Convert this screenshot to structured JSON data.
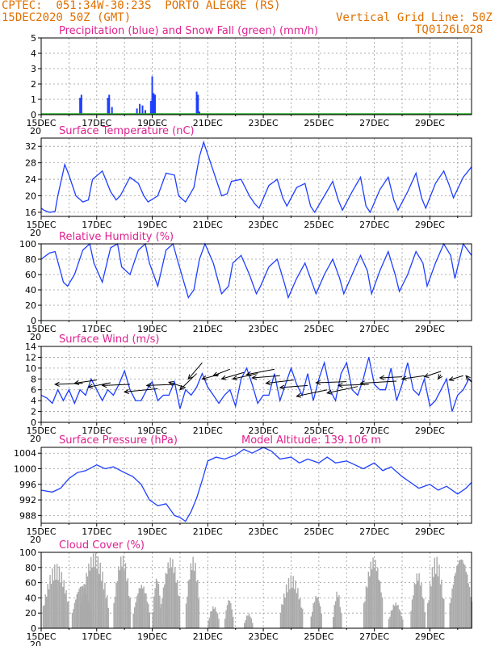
{
  "header": {
    "line1": "CPTEC:  051:34W-30:23S  PORTO ALEGRE (RS)",
    "line2_left": "15DEC2020 50Z (GMT)",
    "line2_right": "Vertical Grid Line: 50Z",
    "line3_right": "TQ0126L028"
  },
  "x_ticks": [
    "15DEC",
    "17DEC",
    "19DEC",
    "21DEC",
    "23DEC",
    "25DEC",
    "27DEC",
    "29DEC"
  ],
  "x_subtick": "20",
  "colors": {
    "series": "#1f3fff",
    "title": "#e0208f",
    "header": "#e07000",
    "cloud": "#aaaaaa",
    "snow": "#22aa22"
  },
  "chart_data": [
    {
      "type": "bar",
      "title": "Precipitation (blue) and Snow Fall (green) (mm/h)",
      "ylim": [
        0,
        5
      ],
      "yticks": [
        0,
        1,
        2,
        3,
        4,
        5
      ],
      "xlim": [
        0,
        15.5
      ],
      "series": [
        {
          "name": "Precipitation",
          "x": [
            1.4,
            1.45,
            2.4,
            2.45,
            2.55,
            3.45,
            3.55,
            3.65,
            3.75,
            3.95,
            4.0,
            4.05,
            4.1,
            5.6,
            5.65,
            5.7
          ],
          "values": [
            1.1,
            1.3,
            1.1,
            1.3,
            0.5,
            0.4,
            0.7,
            0.6,
            0.3,
            0.9,
            2.5,
            1.4,
            1.3,
            1.5,
            1.3,
            0.2
          ]
        }
      ]
    },
    {
      "type": "line",
      "title": "Surface Temperature (nC)",
      "ylim": [
        15,
        34
      ],
      "yticks": [
        16,
        20,
        24,
        28,
        32
      ],
      "xlim": [
        0,
        15.5
      ],
      "x": [
        0,
        0.1,
        0.3,
        0.5,
        0.6,
        0.85,
        1.0,
        1.25,
        1.5,
        1.7,
        1.85,
        2.2,
        2.5,
        2.7,
        2.85,
        3.2,
        3.5,
        3.7,
        3.85,
        4.2,
        4.5,
        4.8,
        4.95,
        5.2,
        5.5,
        5.7,
        5.85,
        6.2,
        6.5,
        6.7,
        6.85,
        7.2,
        7.5,
        7.7,
        7.85,
        8.2,
        8.5,
        8.7,
        8.85,
        9.2,
        9.5,
        9.7,
        9.85,
        10.2,
        10.5,
        10.7,
        10.85,
        11.2,
        11.5,
        11.7,
        11.85,
        12.2,
        12.5,
        12.7,
        12.85,
        13.2,
        13.5,
        13.7,
        13.85,
        14.2,
        14.5,
        14.7,
        14.85,
        15.2,
        15.5
      ],
      "values": [
        17,
        16.5,
        16,
        16.2,
        20,
        27.6,
        25,
        20,
        18.5,
        19,
        24,
        26,
        21,
        19,
        20,
        24.5,
        23,
        20,
        18.5,
        20,
        25.5,
        25,
        20,
        18.5,
        22,
        29.5,
        33,
        26,
        20,
        20.5,
        23.5,
        24,
        20,
        18,
        17,
        22.5,
        24,
        19.5,
        17.5,
        22,
        23,
        17.5,
        16,
        20,
        23.5,
        19,
        16.5,
        21,
        24.5,
        17.5,
        16,
        21.5,
        24.5,
        19,
        16.5,
        21,
        25.5,
        19.5,
        17,
        23,
        26,
        22.5,
        19.5,
        24.5,
        27
      ]
    },
    {
      "type": "line",
      "title": "Relative Humidity (%)",
      "ylim": [
        0,
        100
      ],
      "yticks": [
        0,
        20,
        40,
        60,
        80,
        100
      ],
      "xlim": [
        0,
        15.5
      ],
      "x": [
        0,
        0.3,
        0.5,
        0.65,
        0.8,
        0.95,
        1.2,
        1.5,
        1.75,
        1.9,
        2.2,
        2.5,
        2.75,
        2.9,
        3.2,
        3.5,
        3.75,
        3.9,
        4.2,
        4.5,
        4.75,
        4.9,
        5.3,
        5.5,
        5.7,
        5.9,
        6.2,
        6.5,
        6.75,
        6.9,
        7.2,
        7.5,
        7.75,
        7.9,
        8.2,
        8.5,
        8.75,
        8.9,
        9.2,
        9.5,
        9.75,
        9.9,
        10.2,
        10.5,
        10.75,
        10.9,
        11.2,
        11.5,
        11.75,
        11.9,
        12.2,
        12.5,
        12.75,
        12.9,
        13.2,
        13.5,
        13.75,
        13.9,
        14.2,
        14.5,
        14.75,
        14.9,
        15.2,
        15.5
      ],
      "values": [
        80,
        88,
        90,
        70,
        50,
        45,
        60,
        92,
        100,
        75,
        50,
        95,
        100,
        70,
        60,
        92,
        100,
        75,
        45,
        92,
        100,
        80,
        30,
        40,
        80,
        100,
        75,
        35,
        45,
        75,
        85,
        60,
        35,
        45,
        70,
        80,
        50,
        30,
        55,
        75,
        50,
        35,
        60,
        80,
        55,
        35,
        60,
        85,
        65,
        35,
        65,
        90,
        60,
        38,
        60,
        90,
        75,
        45,
        75,
        100,
        85,
        55,
        100,
        85
      ]
    },
    {
      "type": "line",
      "title": "Surface Wind (m/s)",
      "ylim": [
        0,
        14
      ],
      "yticks": [
        0,
        2,
        4,
        6,
        8,
        10,
        12,
        14
      ],
      "xlim": [
        0,
        15.5
      ],
      "x": [
        0,
        0.2,
        0.4,
        0.6,
        0.8,
        1.0,
        1.2,
        1.4,
        1.6,
        1.8,
        2.0,
        2.2,
        2.4,
        2.6,
        2.8,
        3.0,
        3.2,
        3.4,
        3.6,
        3.8,
        4.0,
        4.2,
        4.4,
        4.6,
        4.8,
        5.0,
        5.2,
        5.4,
        5.6,
        5.8,
        6.0,
        6.2,
        6.4,
        6.6,
        6.8,
        7.0,
        7.2,
        7.4,
        7.6,
        7.8,
        8.0,
        8.2,
        8.4,
        8.6,
        8.8,
        9.0,
        9.2,
        9.4,
        9.6,
        9.8,
        10.0,
        10.2,
        10.4,
        10.6,
        10.8,
        11.0,
        11.2,
        11.4,
        11.6,
        11.8,
        12.0,
        12.2,
        12.4,
        12.6,
        12.8,
        13.0,
        13.2,
        13.4,
        13.6,
        13.8,
        14.0,
        14.2,
        14.4,
        14.6,
        14.8,
        15.0,
        15.2,
        15.4,
        15.5
      ],
      "values": [
        5,
        4.5,
        3.5,
        6,
        4,
        6,
        3.5,
        6,
        5,
        8,
        6,
        4,
        6,
        5,
        7,
        9.5,
        6,
        4,
        4,
        6,
        7.5,
        4,
        5,
        5,
        7.5,
        2.5,
        6,
        5,
        6.5,
        9,
        6.5,
        5,
        3.5,
        5,
        6,
        3,
        8,
        10,
        7,
        3.5,
        5,
        5,
        9,
        4,
        7,
        10,
        7,
        5,
        9,
        4,
        8,
        11,
        6,
        4,
        9,
        11,
        6,
        5,
        8,
        12,
        7,
        6,
        6,
        10,
        4,
        7,
        11,
        6,
        5,
        8,
        3,
        4,
        6,
        8,
        2,
        5,
        6,
        8,
        7.5
      ]
    },
    {
      "type": "line",
      "title": "Surface Pressure (hPa)",
      "annotation": "Model Altitude: 139.106  m",
      "ylim": [
        986,
        1005.5
      ],
      "yticks": [
        988,
        992,
        996,
        1000,
        1004
      ],
      "xlim": [
        0,
        15.5
      ],
      "x": [
        0,
        0.4,
        0.7,
        1.0,
        1.3,
        1.6,
        2.0,
        2.3,
        2.6,
        3.0,
        3.3,
        3.6,
        3.9,
        4.2,
        4.5,
        4.8,
        5.0,
        5.2,
        5.4,
        5.6,
        5.8,
        6.0,
        6.3,
        6.6,
        7.0,
        7.3,
        7.6,
        8.0,
        8.3,
        8.6,
        9.0,
        9.3,
        9.6,
        10.0,
        10.3,
        10.6,
        11.0,
        11.3,
        11.6,
        12.0,
        12.3,
        12.6,
        13.0,
        13.3,
        13.6,
        14.0,
        14.3,
        14.6,
        15.0,
        15.3,
        15.5
      ],
      "values": [
        994.5,
        994,
        995,
        997.5,
        999,
        999.5,
        1001,
        1000,
        1000.5,
        999,
        998,
        996,
        992,
        990.5,
        991,
        988,
        987.5,
        986.5,
        989,
        992.5,
        997,
        1002,
        1003,
        1002.5,
        1003.5,
        1005,
        1004,
        1005.5,
        1004.5,
        1002.5,
        1003,
        1001.5,
        1002.5,
        1001.5,
        1003,
        1001.5,
        1002,
        1001,
        1000,
        1001.5,
        999.5,
        1000.5,
        998,
        996.5,
        995,
        996,
        994.5,
        995.5,
        993.5,
        995,
        996.5
      ]
    },
    {
      "type": "bar",
      "title": "Cloud Cover (%)",
      "ylim": [
        0,
        100
      ],
      "yticks": [
        0,
        20,
        40,
        60,
        80,
        100
      ],
      "xlim": [
        0,
        15.5
      ],
      "segments": [
        {
          "start": 0.05,
          "end": 1.0,
          "peak": 85
        },
        {
          "start": 1.1,
          "end": 1.8,
          "peak": 60
        },
        {
          "start": 1.4,
          "end": 2.4,
          "peak": 100
        },
        {
          "start": 2.6,
          "end": 3.2,
          "peak": 98
        },
        {
          "start": 3.3,
          "end": 3.9,
          "peak": 60
        },
        {
          "start": 4.0,
          "end": 4.3,
          "peak": 70
        },
        {
          "start": 4.3,
          "end": 5.0,
          "peak": 95
        },
        {
          "start": 5.2,
          "end": 5.7,
          "peak": 95
        },
        {
          "start": 6.0,
          "end": 6.4,
          "peak": 30
        },
        {
          "start": 6.6,
          "end": 6.9,
          "peak": 40
        },
        {
          "start": 7.3,
          "end": 7.6,
          "peak": 20
        },
        {
          "start": 8.6,
          "end": 9.4,
          "peak": 70
        },
        {
          "start": 9.7,
          "end": 10.1,
          "peak": 45
        },
        {
          "start": 10.5,
          "end": 10.8,
          "peak": 50
        },
        {
          "start": 11.6,
          "end": 12.3,
          "peak": 95
        },
        {
          "start": 12.5,
          "end": 13.0,
          "peak": 35
        },
        {
          "start": 13.3,
          "end": 13.8,
          "peak": 75
        },
        {
          "start": 13.9,
          "end": 14.5,
          "peak": 95
        },
        {
          "start": 14.7,
          "end": 15.5,
          "peak": 98
        }
      ]
    }
  ]
}
